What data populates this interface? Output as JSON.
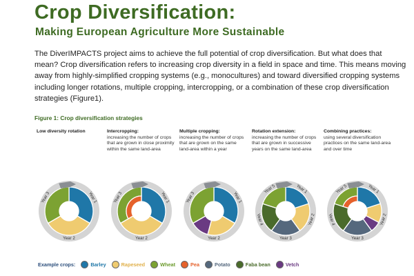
{
  "header": {
    "title": "Crop Diversification:",
    "subtitle": "Making European Agriculture More Sustainable"
  },
  "intro": "The DiverIMPACTS project aims to achieve the full potential of crop diversification. But what does that mean? Crop diversification refers to increasing crop diversity in a field in space and time. This means moving away from highly-simplified cropping systems (e.g., monocultures) and toward diversified cropping systems including longer rotations, multiple cropping, intercropping, or a combination of these crop diversification strategies (Figure1).",
  "figure": {
    "title": "Figure 1: Crop diversification strategies",
    "strategies": [
      {
        "heading": "Low diversity rotation",
        "description": "",
        "years": [
          "Year 1",
          "Year 2",
          "Year 3"
        ],
        "wheel_crops": [
          "Barley",
          "Rapeseed",
          "Wheat"
        ]
      },
      {
        "heading": "Intercropping:",
        "description": "increasing the number of crops that are grown in close proximity within the same land-area",
        "years": [
          "Year 1",
          "Year 2",
          "Year 3"
        ],
        "wheel_crops": [
          "Barley",
          "Rapeseed",
          "Wheat",
          "Pea"
        ]
      },
      {
        "heading": "Multiple cropping:",
        "description": "increasing the number of crops that are grown on the same land-area within a year",
        "years": [
          "Year 1",
          "Year 2",
          "Year 3"
        ],
        "wheel_crops": [
          "Barley",
          "Rapeseed",
          "Vetch",
          "Wheat"
        ]
      },
      {
        "heading": "Rotation extension:",
        "description": "increasing the number of crops that are grown in successive years on the same land-area",
        "years": [
          "Year 1",
          "Year 2",
          "Year 3",
          "Year 4",
          "Year 5"
        ],
        "wheel_crops": [
          "Barley",
          "Rapeseed",
          "Potato",
          "Faba bean",
          "Wheat"
        ]
      },
      {
        "heading": "Combining practices:",
        "description": "using several diversification practices on the same land-area and over time",
        "years": [
          "Year 1",
          "Year 2",
          "Year 3",
          "Year 4",
          "Year 5"
        ],
        "wheel_crops": [
          "Barley",
          "Rapeseed",
          "Vetch",
          "Potato",
          "Faba bean",
          "Wheat",
          "Pea"
        ]
      }
    ]
  },
  "legend": {
    "label": "Example crops:",
    "items": [
      {
        "name": "Barley",
        "color": "#1f77a8",
        "text_color": "#1f77a8"
      },
      {
        "name": "Rapeseed",
        "color": "#efcb70",
        "text_color": "#e0b04a"
      },
      {
        "name": "Wheat",
        "color": "#7ca232",
        "text_color": "#6b9a2c"
      },
      {
        "name": "Pea",
        "color": "#e5612b",
        "text_color": "#e5612b"
      },
      {
        "name": "Potato",
        "color": "#55687d",
        "text_color": "#55687d"
      },
      {
        "name": "Faba bean",
        "color": "#4a6b2b",
        "text_color": "#4a6b2b"
      },
      {
        "name": "Vetch",
        "color": "#6a3a82",
        "text_color": "#6a3a82"
      }
    ]
  },
  "colors": {
    "title_green": "#3e6b23",
    "ring_grey": "#d4d4d4",
    "arrow_grey": "#8a8e93"
  }
}
